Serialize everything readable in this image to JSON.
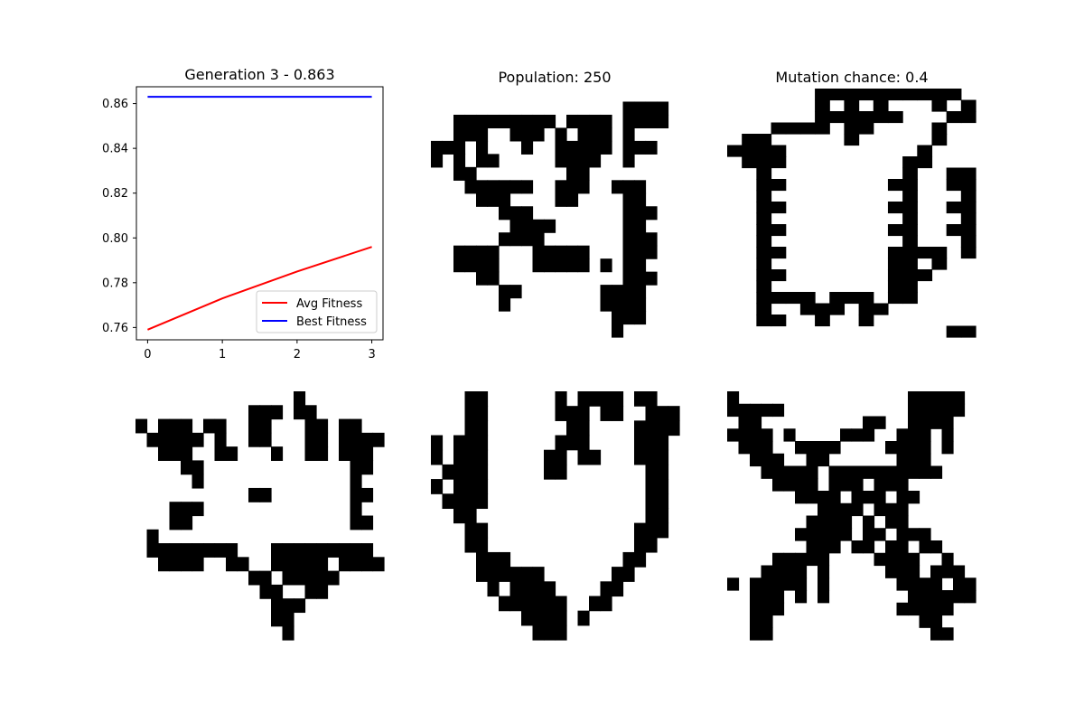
{
  "figure": {
    "titles": {
      "plot": "Generation 3 - 0.863",
      "population": "Population: 250",
      "mutation": "Mutation chance: 0.4"
    }
  },
  "chart_data": [
    {
      "type": "line",
      "title": "Generation 3 - 0.863",
      "xlabel": "",
      "ylabel": "",
      "x": [
        0,
        1,
        2,
        3
      ],
      "xlim": [
        -0.15,
        3.15
      ],
      "ylim": [
        0.7545,
        0.8675
      ],
      "xticks": [
        0,
        1,
        2,
        3
      ],
      "yticks": [
        0.76,
        0.78,
        0.8,
        0.82,
        0.84,
        0.86
      ],
      "ytick_labels": [
        "0.76",
        "0.78",
        "0.80",
        "0.82",
        "0.84",
        "0.86"
      ],
      "legend_placement": "lower-right",
      "grid": false,
      "series": [
        {
          "name": "Avg Fitness",
          "color": "#ff0000",
          "values": [
            0.759,
            0.773,
            0.785,
            0.796
          ]
        },
        {
          "name": "Best Fitness",
          "color": "#0000ff",
          "values": [
            0.863,
            0.863,
            0.863,
            0.863
          ]
        }
      ]
    },
    {
      "type": "heatmap",
      "title": "Population: 250",
      "colors": [
        "#ffffff",
        "#000000"
      ],
      "grid": [
        "......................",
        ".................####.",
        "..#########.####.####.",
        "..###..###.#.###.#....",
        "###.#...#..#####.###..",
        "#.#.##.....####..#....",
        "..##........##........",
        "...######..###..###...",
        "....###....##....##...",
        "......###........###..",
        ".......####......##...",
        "......####.......###..",
        "..####...#####...###..",
        "..####...#####.#.##...",
        "....##...........###..",
        "......##.......####...",
        "......#........####...",
        "................###...",
        "................#....."
      ]
    },
    {
      "type": "heatmap",
      "title": "Mutation chance: 0.4",
      "colors": [
        "#ffffff",
        "#000000"
      ],
      "grid": [
        "......##########.",
        "......#.#.#...#.#",
        "......######...##",
        "...####.##....#..",
        ".##.....#.....#..",
        "####.........#..",
        ".###........##..",
        "..#.........#..##",
        "..##.......##..##",
        "..#.........#...#",
        "..##.......##..##",
        "..#.........#...#",
        "..##.......##..##",
        "..#.........#...#",
        "..##.......####.#",
        "..#........##.#..",
        "..##.......###...",
        "..#........##....",
        "..####.###.##....",
        "..#..###.##......",
        "..##..#..#.......",
        "...............##"
      ]
    },
    {
      "type": "heatmap",
      "title": "",
      "colors": [
        "#ffffff",
        "#000000"
      ],
      "grid": [
        "..............#.......",
        "..........###.##......",
        "#.###.##..##...##.##..",
        ".#####.#..##...##.####",
        "..###..##...#..##.###.",
        "....##.............##.",
        ".....#.............#..",
        "..........##.......##.",
        "...###.............#..",
        "...##..............##.",
        ".#....................",
        ".########...#########.",
        "..####..##..#####.####",
        "..........##.#####....",
        "...........##..##.....",
        "............###.......",
        "............##........",
        ".............#........"
      ]
    },
    {
      "type": "heatmap",
      "title": "",
      "colors": [
        "#ffffff",
        "#000000"
      ],
      "grid": [
        "...##......#.####.##..",
        "...##......###.##..###",
        "...##.......##....####",
        "#.###......###....###.",
        "#.###.....##.##...###.",
        ".####.....##.......##.",
        "#.###..............##.",
        ".####..............##.",
        "..##...............##.",
        "...##.............###.",
        "...##.............##..",
        "....###..........##...",
        "....######......##....",
        ".....#.####....##.....",
        "......######..##......",
        "........####.#........",
        ".........###.........."
      ]
    },
    {
      "type": "heatmap",
      "title": "",
      "colors": [
        "#ffffff",
        "#000000"
      ],
      "grid": [
        "#...............#####",
        "#####...........#####",
        ".##.........##..####.",
        "####.#....###..###.#.",
        ".###..####....####.#.",
        "..###..##......###...",
        "...#####.##########..",
        "....####.###.###.....",
        "......####.###.##.....",
        "........####.###.....",
        ".......####.#.##.....",
        "......#####.##.###...",
        ".......###.##.##.##..",
        "....#####....####..#..",
        "...####.#.....###.###.",
        "#.#####.#......####.##",
        "..###.#.#.......######",
        "..###..........#####..",
        "..##.............##...",
        "..##..............##.."
      ]
    }
  ]
}
